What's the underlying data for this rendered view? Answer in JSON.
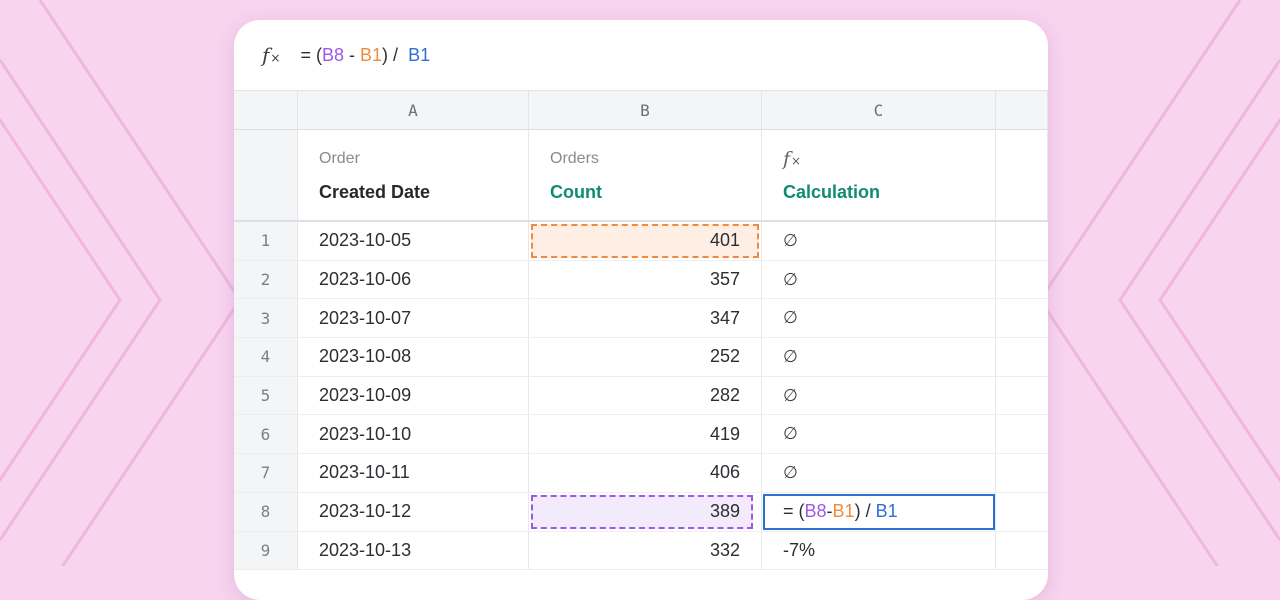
{
  "formula_bar": {
    "icon": "fx-icon",
    "prefix": "= (",
    "ref1": "B8",
    "minus": " - ",
    "ref2": "B1",
    "close": ") / ",
    "ref3": "B1"
  },
  "columns": [
    "A",
    "B",
    "C"
  ],
  "headers": {
    "a": {
      "sup": "Order",
      "main": "Created Date"
    },
    "b": {
      "sup": "Orders",
      "main": "Count"
    },
    "c": {
      "sup_icon": "fx-icon",
      "main": "Calculation"
    }
  },
  "rows": [
    {
      "index": "1",
      "date": "2023-10-05",
      "count": "401",
      "calc": "∅"
    },
    {
      "index": "2",
      "date": "2023-10-06",
      "count": "357",
      "calc": "∅"
    },
    {
      "index": "3",
      "date": "2023-10-07",
      "count": "347",
      "calc": "∅"
    },
    {
      "index": "4",
      "date": "2023-10-08",
      "count": "252",
      "calc": "∅"
    },
    {
      "index": "5",
      "date": "2023-10-09",
      "count": "282",
      "calc": "∅"
    },
    {
      "index": "6",
      "date": "2023-10-10",
      "count": "419",
      "calc": "∅"
    },
    {
      "index": "7",
      "date": "2023-10-11",
      "count": "406",
      "calc": "∅"
    },
    {
      "index": "8",
      "date": "2023-10-12",
      "count": "389",
      "calc": "= (B8 - B1) /  B1"
    },
    {
      "index": "9",
      "date": "2023-10-13",
      "count": "332",
      "calc": "-7%"
    }
  ],
  "colors": {
    "background": "#f8d4ef",
    "accent_teal": "#0f8c72",
    "ref_purple": "#9b59e6",
    "ref_orange": "#f08a3c",
    "ref_blue": "#2e6fd1"
  }
}
